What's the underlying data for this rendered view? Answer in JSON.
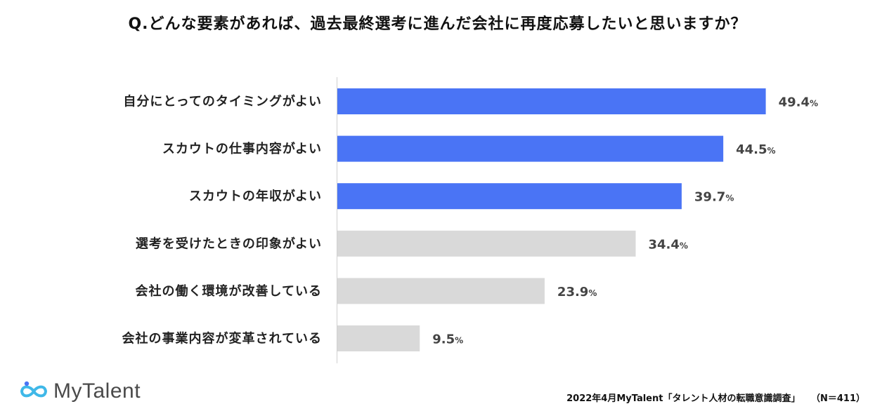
{
  "title": "Q.どんな要素があれば、過去最終選考に進んだ会社に再度応募したいと思いますか？",
  "chart_data": {
    "type": "bar",
    "orientation": "horizontal",
    "categories": [
      "自分にとってのタイミングがよい",
      "スカウトの仕事内容がよい",
      "スカウトの年収がよい",
      "選考を受けたときの印象がよい",
      "会社の働く環境が改善している",
      "会社の事業内容が変革されている"
    ],
    "values": [
      49.4,
      44.5,
      39.7,
      34.4,
      23.9,
      9.5
    ],
    "unit": "%",
    "highlight_count": 3,
    "colors": {
      "highlight": "#4a74f5",
      "normal": "#d9d9d9"
    },
    "xlim": [
      0,
      50
    ]
  },
  "footer": {
    "source": "2022年4月MyTalent「タレント人材の転職意識調査」",
    "n": "（N＝411）"
  },
  "logo": {
    "text": "MyTalent",
    "icon": "infinity-logo-icon"
  }
}
